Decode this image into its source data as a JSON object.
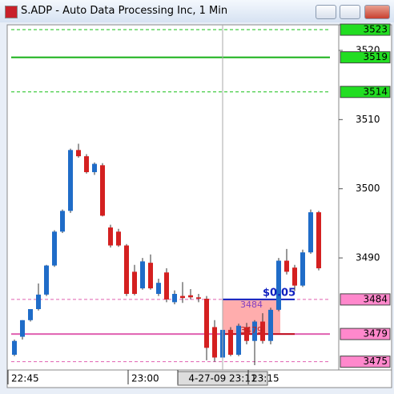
{
  "window": {
    "title": "S.ADP - Auto Data Processing Inc, 1 Min"
  },
  "chart_data": {
    "type": "candlestick",
    "categories": [
      "22:45",
      null,
      null,
      null,
      null,
      null,
      null,
      null,
      null,
      null,
      null,
      null,
      null,
      null,
      null,
      "23:00",
      null,
      null,
      null,
      null,
      null,
      null,
      null,
      null,
      null,
      null,
      "4-27-09 23:11",
      null,
      null,
      null,
      "23:15",
      null,
      null,
      null,
      null,
      null,
      null,
      null,
      null
    ],
    "open": [
      3476,
      3478.6,
      3481,
      3482.6,
      3484.7,
      3488.9,
      3493.8,
      3496.8,
      3505.6,
      3504.7,
      3502.4,
      3503.4,
      3494.4,
      3493.8,
      3491.8,
      3488,
      3485.6,
      3489.3,
      3484.8,
      3487.9,
      3483.6,
      3484.5,
      3484.6,
      3484.3,
      3484.1,
      3480,
      3475.6,
      3479.6,
      3476,
      3480,
      3478,
      3480.8,
      3478,
      3482.5,
      3489.6,
      3488.6,
      3486,
      3490.8,
      3496.6
    ],
    "high": [
      3478.2,
      3481,
      3482.6,
      3486.3,
      3489,
      3494,
      3497,
      3505.8,
      3506.5,
      3505,
      3503.8,
      3503.7,
      3494.8,
      3494.2,
      3492,
      3489,
      3490,
      3490.5,
      3487,
      3488.5,
      3485.3,
      3486.5,
      3485.5,
      3484.8,
      3484.5,
      3481,
      3480,
      3480,
      3480.5,
      3480.6,
      3481,
      3482,
      3482.8,
      3490,
      3491.3,
      3489,
      3491.2,
      3497,
      3496.8
    ],
    "low": [
      3475.8,
      3478.2,
      3480.8,
      3482.4,
      3484.5,
      3488.7,
      3493.6,
      3496.5,
      3504.5,
      3502.2,
      3502,
      3496,
      3491.5,
      3491.6,
      3484.5,
      3484.6,
      3485.4,
      3485.4,
      3484.5,
      3483.6,
      3483.3,
      3483.5,
      3484,
      3483.6,
      3475.2,
      3475,
      3475.4,
      3475.8,
      3475.8,
      3477.5,
      3474.5,
      3477.6,
      3477.5,
      3482.3,
      3487.6,
      3485.2,
      3485.8,
      3490.6,
      3488.2
    ],
    "close": [
      3478,
      3481,
      3482.6,
      3484.7,
      3488.9,
      3493.8,
      3496.8,
      3505.6,
      3504.7,
      3502.4,
      3503.6,
      3496.1,
      3491.8,
      3491.8,
      3484.8,
      3484.8,
      3489.5,
      3485.6,
      3486.4,
      3484,
      3484.8,
      3484.2,
      3484.3,
      3484.1,
      3477,
      3475.6,
      3479.6,
      3476,
      3480.2,
      3478,
      3480.8,
      3478,
      3482.5,
      3489.6,
      3488,
      3486,
      3490.8,
      3496.6,
      3488.5
    ],
    "up_color": "#1f6cc8",
    "down_color": "#d42020",
    "ylim": [
      3473.8,
      3523.7
    ],
    "yticks": [
      3520,
      3510,
      3500,
      3490
    ],
    "levels": [
      {
        "value": 3523,
        "color": "#16c016",
        "style": "dashed",
        "label_bg": "#22dd22"
      },
      {
        "value": 3519,
        "color": "#16b016",
        "style": "solid",
        "label_bg": "#22dd22"
      },
      {
        "value": 3514,
        "color": "#16c016",
        "style": "dashed",
        "label_bg": "#22dd22"
      },
      {
        "value": 3484,
        "color": "#e060b0",
        "style": "dashed",
        "label_bg": "#ff88cc"
      },
      {
        "value": 3479,
        "color": "#e060b0",
        "style": "solid",
        "label_bg": "#ff88cc"
      },
      {
        "value": 3475,
        "color": "#e060b0",
        "style": "dashed",
        "label_bg": "#ff88cc"
      }
    ],
    "measure": {
      "label": "$0.05",
      "high": 3484,
      "low": 3479
    }
  }
}
